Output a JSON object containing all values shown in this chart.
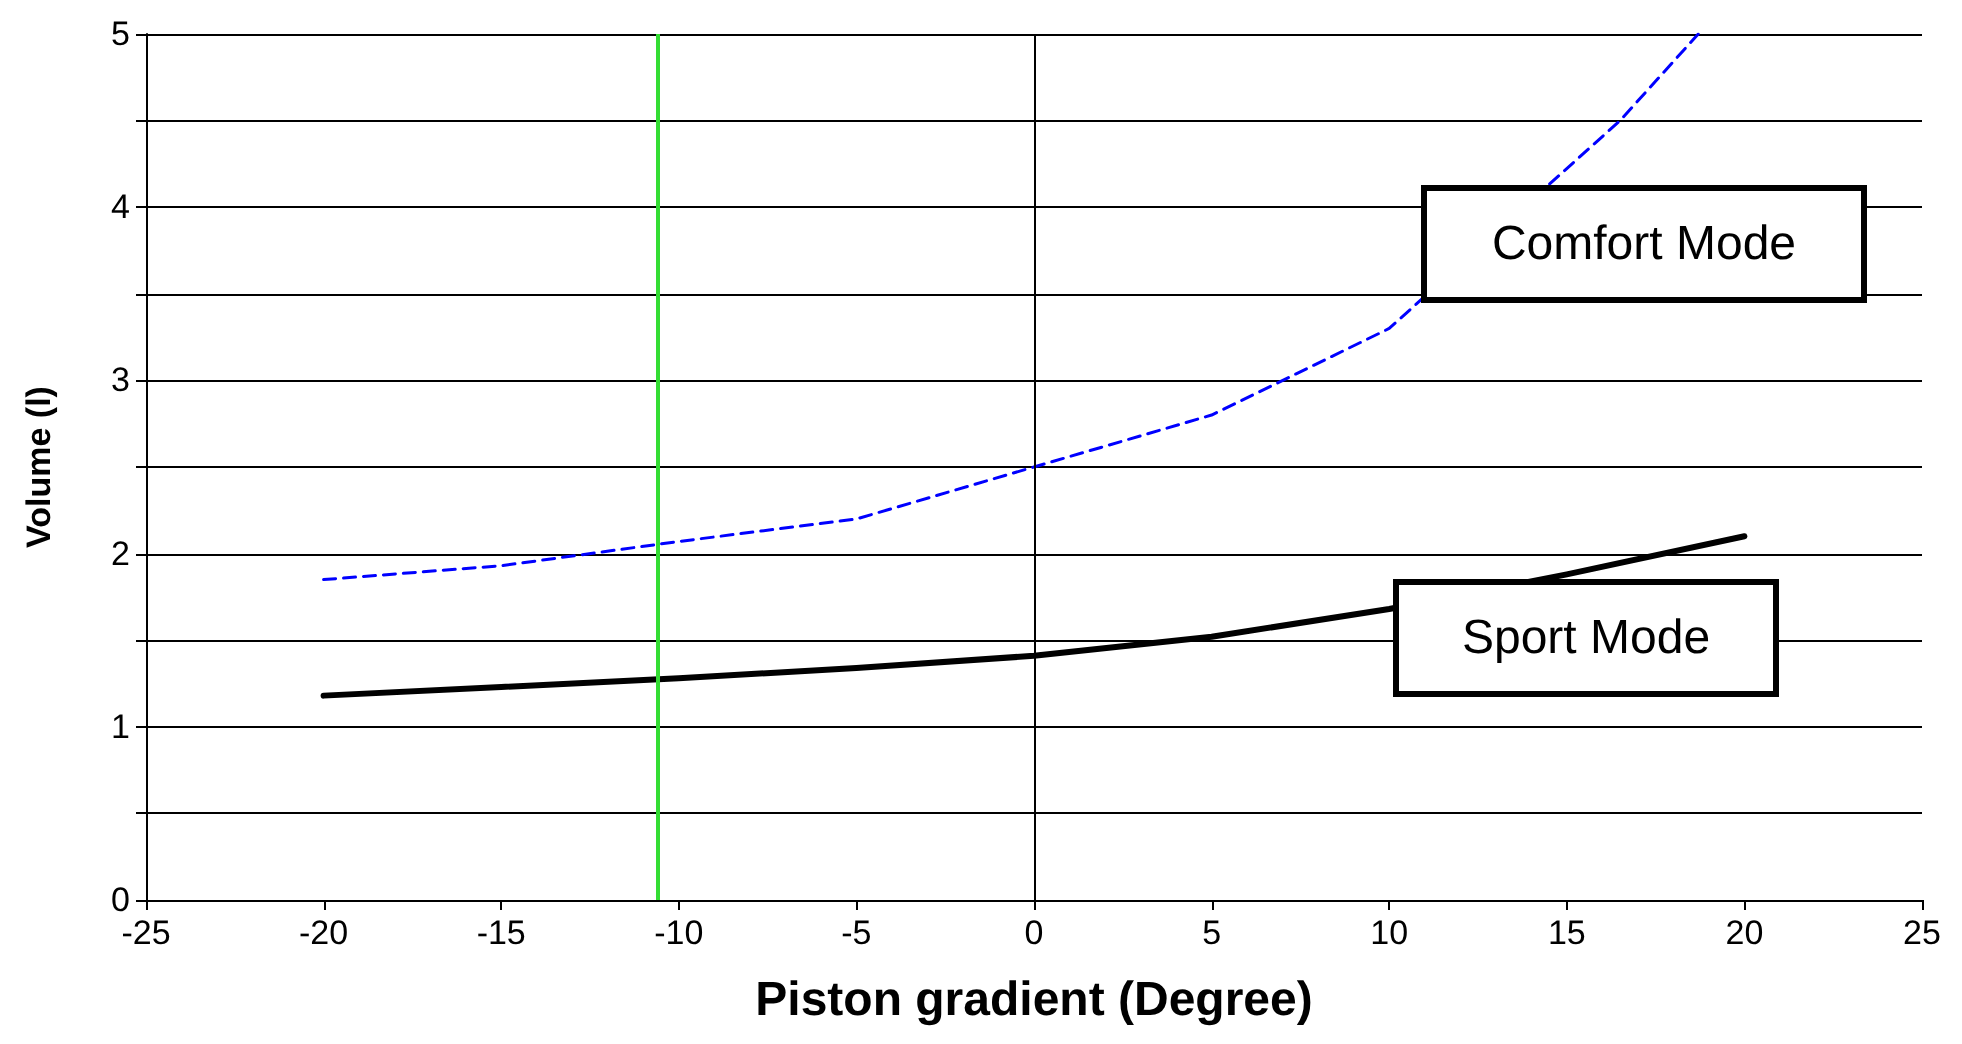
{
  "chart_data": {
    "type": "line",
    "xlabel": "Piston gradient (Degree)",
    "ylabel": "Volume (l)",
    "series": [
      {
        "name": "Comfort Mode",
        "color": "#0000ff",
        "line_style": "dashed",
        "x": [
          -20,
          -15,
          -10,
          -5,
          0,
          5,
          10,
          16.5,
          18.7
        ],
        "values": [
          1.85,
          1.93,
          2.07,
          2.2,
          2.5,
          2.8,
          3.3,
          4.5,
          5.0
        ]
      },
      {
        "name": "Sport Mode",
        "color": "#000000",
        "line_style": "solid",
        "x": [
          -20,
          -15,
          -10,
          -5,
          0,
          5,
          10,
          15,
          20
        ],
        "values": [
          1.18,
          1.23,
          1.28,
          1.34,
          1.41,
          1.52,
          1.68,
          1.88,
          2.1
        ]
      }
    ],
    "xlim": [
      -25,
      25
    ],
    "xticks": [
      -25,
      -20,
      -15,
      -10,
      -5,
      0,
      5,
      10,
      15,
      20,
      25
    ],
    "ylim": [
      0,
      5
    ],
    "yticks": [
      0,
      {
        "value": 0.5,
        "label": null
      },
      1,
      {
        "value": 1.5,
        "label": null
      },
      2,
      {
        "value": 2.5,
        "label": null
      },
      3,
      {
        "value": 3.5,
        "label": null
      },
      4,
      {
        "value": 4.5,
        "label": null
      },
      5
    ],
    "ref_lines": [
      {
        "axis": "x",
        "value": 0,
        "color": "#000000"
      },
      {
        "axis": "x",
        "value": -10.6,
        "color": "#33dd33"
      }
    ],
    "grid": "y",
    "legend": false,
    "marker": "none"
  }
}
